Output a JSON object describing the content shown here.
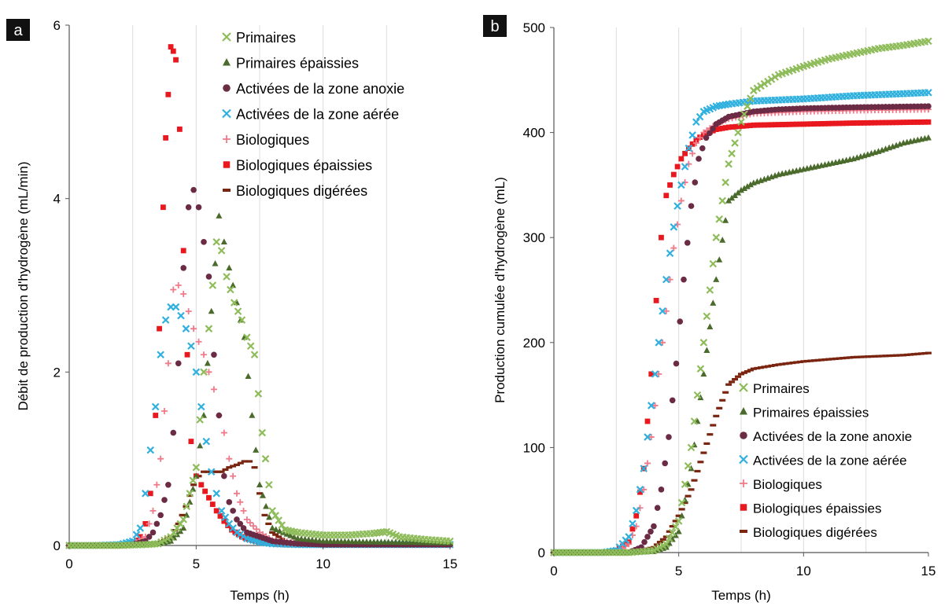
{
  "series_styles": [
    {
      "key": "prim",
      "marker": "x",
      "color": "#8fbc5a"
    },
    {
      "key": "prim_ep",
      "marker": "triangle",
      "color": "#4a6b2c"
    },
    {
      "key": "anox",
      "marker": "circle",
      "color": "#6b2b45"
    },
    {
      "key": "aer",
      "marker": "x",
      "color": "#2fb0de"
    },
    {
      "key": "bio",
      "marker": "plus",
      "color": "#f07a8a"
    },
    {
      "key": "bio_ep",
      "marker": "square",
      "color": "#e8181e"
    },
    {
      "key": "bio_dig",
      "marker": "dash",
      "color": "#7a2510"
    }
  ],
  "chart_data": [
    {
      "type": "scatter",
      "panel_label": "a",
      "title": "",
      "xlabel": "Temps (h)",
      "ylabel": "Débit de production  d'hydrogène (mL/min)",
      "xlim": [
        0,
        15
      ],
      "ylim": [
        0,
        6
      ],
      "xticks": [
        "0",
        "5",
        "10",
        "15"
      ],
      "yticks": [
        "0",
        "2",
        "4",
        "6"
      ],
      "grid": "vertical",
      "legend_position": "top-right",
      "series": [
        {
          "name": "Primaires",
          "x": [
            0,
            1,
            2,
            3,
            3.5,
            4,
            4.5,
            5,
            5.3,
            5.5,
            5.8,
            6,
            6.2,
            6.5,
            6.8,
            7,
            7.3,
            7.6,
            8,
            8.5,
            9,
            10,
            11,
            12,
            12.5,
            13,
            14,
            15
          ],
          "y": [
            0,
            0,
            0,
            0.01,
            0.02,
            0.1,
            0.3,
            0.9,
            2.0,
            2.5,
            3.5,
            3.4,
            3.1,
            2.8,
            2.6,
            2.4,
            2.2,
            1.3,
            0.4,
            0.18,
            0.15,
            0.12,
            0.12,
            0.14,
            0.16,
            0.1,
            0.07,
            0.05
          ]
        },
        {
          "name": "Primaires épaissies",
          "x": [
            0,
            1,
            2,
            3,
            3.5,
            4,
            4.5,
            5,
            5.3,
            5.6,
            5.9,
            6.1,
            6.3,
            6.6,
            6.9,
            7.2,
            7.5,
            8,
            9,
            10,
            12,
            15
          ],
          "y": [
            0,
            0,
            0,
            0.01,
            0.02,
            0.05,
            0.2,
            0.8,
            1.5,
            2.7,
            3.8,
            3.5,
            3.2,
            2.8,
            2.4,
            1.5,
            0.7,
            0.2,
            0.08,
            0.05,
            0.04,
            0.03
          ]
        },
        {
          "name": "Activées de la zone anoxie",
          "x": [
            0,
            1,
            2,
            2.5,
            3,
            3.3,
            3.6,
            3.9,
            4.1,
            4.3,
            4.5,
            4.7,
            4.9,
            5.1,
            5.3,
            5.5,
            5.7,
            5.9,
            6.1,
            6.3,
            6.6,
            7,
            7.5,
            8,
            9,
            10,
            12,
            15
          ],
          "y": [
            0,
            0,
            0,
            0.01,
            0.05,
            0.15,
            0.35,
            0.7,
            1.3,
            2.1,
            3.2,
            3.9,
            4.1,
            3.9,
            3.5,
            3.1,
            2.2,
            1.5,
            0.8,
            0.5,
            0.3,
            0.15,
            0.1,
            0.05,
            0.02,
            0.01,
            0.01,
            0.01
          ]
        },
        {
          "name": "Activées de la zone aérée",
          "x": [
            0,
            1,
            2,
            2.5,
            2.8,
            3,
            3.2,
            3.4,
            3.6,
            3.8,
            4,
            4.2,
            4.4,
            4.6,
            4.8,
            5,
            5.2,
            5.4,
            5.6,
            5.8,
            6,
            6.3,
            6.6,
            7,
            7.5,
            8,
            9,
            10,
            12,
            15
          ],
          "y": [
            0,
            0,
            0.01,
            0.05,
            0.2,
            0.6,
            1.1,
            1.6,
            2.2,
            2.6,
            2.75,
            2.75,
            2.65,
            2.5,
            2.3,
            2.0,
            1.6,
            1.2,
            0.85,
            0.6,
            0.4,
            0.25,
            0.15,
            0.08,
            0.04,
            0.02,
            0.01,
            0.01,
            0.01,
            0.01
          ]
        },
        {
          "name": "Biologiques",
          "x": [
            0,
            1,
            2,
            2.5,
            3,
            3.3,
            3.6,
            3.9,
            4.1,
            4.3,
            4.5,
            4.7,
            4.9,
            5.1,
            5.3,
            5.5,
            5.7,
            5.9,
            6.1,
            6.3,
            6.6,
            7,
            7.5,
            8,
            9,
            10,
            12,
            15
          ],
          "y": [
            0,
            0,
            0,
            0.02,
            0.1,
            0.4,
            1.0,
            2.1,
            2.95,
            3.0,
            2.9,
            2.7,
            2.5,
            2.35,
            2.2,
            2.0,
            1.8,
            1.5,
            1.3,
            1.0,
            0.6,
            0.3,
            0.15,
            0.06,
            0.03,
            0.01,
            0.01,
            0.01
          ]
        },
        {
          "name": "Biologiques épaissies",
          "x": [
            0,
            1,
            2,
            2.5,
            2.8,
            3,
            3.2,
            3.4,
            3.55,
            3.7,
            3.8,
            3.9,
            4,
            4.1,
            4.2,
            4.35,
            4.5,
            4.65,
            4.8,
            5,
            5.2,
            5.5,
            5.8,
            6.1,
            6.4,
            6.8,
            7.2,
            7.7,
            8.5,
            10,
            12,
            15
          ],
          "y": [
            0,
            0,
            0,
            0.02,
            0.1,
            0.25,
            0.6,
            1.5,
            2.5,
            3.9,
            4.7,
            5.2,
            5.75,
            5.7,
            5.6,
            4.8,
            3.4,
            2.2,
            1.2,
            0.8,
            0.7,
            0.55,
            0.4,
            0.28,
            0.18,
            0.1,
            0.06,
            0.03,
            0.01,
            0.01,
            0.01,
            0.01
          ]
        },
        {
          "name": "Biologiques digérées",
          "x": [
            0,
            1,
            2,
            3,
            3.5,
            4,
            4.3,
            4.6,
            4.9,
            5.1,
            5.3,
            5.6,
            6,
            6.3,
            6.6,
            6.9,
            7.1,
            7.3,
            7.5,
            7.7,
            8,
            8.5,
            9,
            10,
            12,
            15
          ],
          "y": [
            0,
            0,
            0,
            0,
            0.02,
            0.1,
            0.25,
            0.45,
            0.7,
            0.8,
            0.85,
            0.85,
            0.85,
            0.9,
            0.93,
            0.97,
            0.97,
            0.9,
            0.6,
            0.35,
            0.15,
            0.05,
            0.02,
            0.01,
            0.01,
            0.01
          ]
        }
      ]
    },
    {
      "type": "scatter",
      "panel_label": "b",
      "title": "",
      "xlabel": "Temps (h)",
      "ylabel": "Production cumulée d'hydrogène  (mL)",
      "xlim": [
        0,
        15
      ],
      "ylim": [
        0,
        500
      ],
      "xticks": [
        "0",
        "5",
        "10",
        "15"
      ],
      "yticks": [
        "0",
        "100",
        "200",
        "300",
        "400",
        "500"
      ],
      "grid": "vertical",
      "legend_position": "bottom-right",
      "series": [
        {
          "name": "Primaires",
          "x": [
            0,
            2,
            3,
            4,
            4.5,
            5,
            5.5,
            6,
            6.5,
            7,
            7.5,
            8,
            9,
            10,
            11,
            12,
            13,
            14,
            15
          ],
          "y": [
            0,
            0,
            0,
            2,
            8,
            30,
            100,
            200,
            300,
            370,
            410,
            440,
            455,
            463,
            470,
            475,
            480,
            483,
            487
          ]
        },
        {
          "name": "Primaires épaissies",
          "x": [
            0,
            2,
            3,
            4,
            4.5,
            5,
            5.5,
            6,
            6.5,
            7,
            7.5,
            8,
            9,
            10,
            11,
            12,
            13,
            14,
            15
          ],
          "y": [
            0,
            0,
            0,
            1,
            5,
            20,
            80,
            170,
            260,
            335,
            345,
            352,
            360,
            365,
            370,
            375,
            382,
            390,
            395
          ]
        },
        {
          "name": "Activées de la zone anoxie",
          "x": [
            0,
            2,
            3,
            3.5,
            4,
            4.3,
            4.6,
            4.9,
            5.2,
            5.5,
            5.8,
            6.1,
            6.5,
            7,
            8,
            9,
            10,
            12,
            15
          ],
          "y": [
            0,
            0,
            0,
            5,
            25,
            60,
            110,
            180,
            260,
            330,
            375,
            395,
            408,
            415,
            420,
            422,
            423,
            424,
            425
          ]
        },
        {
          "name": "Activées de la zone aérée",
          "x": [
            0,
            2,
            2.5,
            3,
            3.3,
            3.6,
            3.9,
            4.2,
            4.5,
            4.8,
            5.1,
            5.4,
            5.7,
            6,
            6.5,
            7,
            8,
            10,
            12,
            15
          ],
          "y": [
            0,
            0,
            2,
            15,
            40,
            80,
            140,
            200,
            260,
            310,
            350,
            385,
            410,
            420,
            425,
            427,
            430,
            432,
            435,
            438
          ]
        },
        {
          "name": "Biologiques",
          "x": [
            0,
            2,
            2.5,
            3,
            3.3,
            3.6,
            3.9,
            4.2,
            4.5,
            4.8,
            5.1,
            5.4,
            5.7,
            6,
            6.5,
            7,
            8,
            10,
            12,
            15
          ],
          "y": [
            0,
            0,
            1,
            8,
            25,
            60,
            110,
            170,
            230,
            290,
            335,
            370,
            390,
            400,
            408,
            413,
            418,
            420,
            421,
            422
          ]
        },
        {
          "name": "Biologiques épaissies",
          "x": [
            0,
            2,
            2.5,
            3,
            3.3,
            3.6,
            3.9,
            4.1,
            4.3,
            4.5,
            4.8,
            5.1,
            5.4,
            5.7,
            6,
            6.5,
            7,
            8,
            10,
            12,
            15
          ],
          "y": [
            0,
            0,
            2,
            10,
            35,
            80,
            170,
            240,
            300,
            340,
            360,
            375,
            385,
            393,
            398,
            403,
            405,
            407,
            408,
            409,
            410
          ]
        },
        {
          "name": "Biologiques digérées",
          "x": [
            0,
            3,
            4,
            4.5,
            5,
            5.5,
            6,
            6.5,
            7,
            7.5,
            8,
            9,
            10,
            11,
            12,
            13,
            14,
            15
          ],
          "y": [
            0,
            0,
            5,
            15,
            35,
            60,
            95,
            130,
            160,
            170,
            175,
            179,
            182,
            184,
            186,
            187,
            188,
            190
          ]
        }
      ]
    }
  ]
}
